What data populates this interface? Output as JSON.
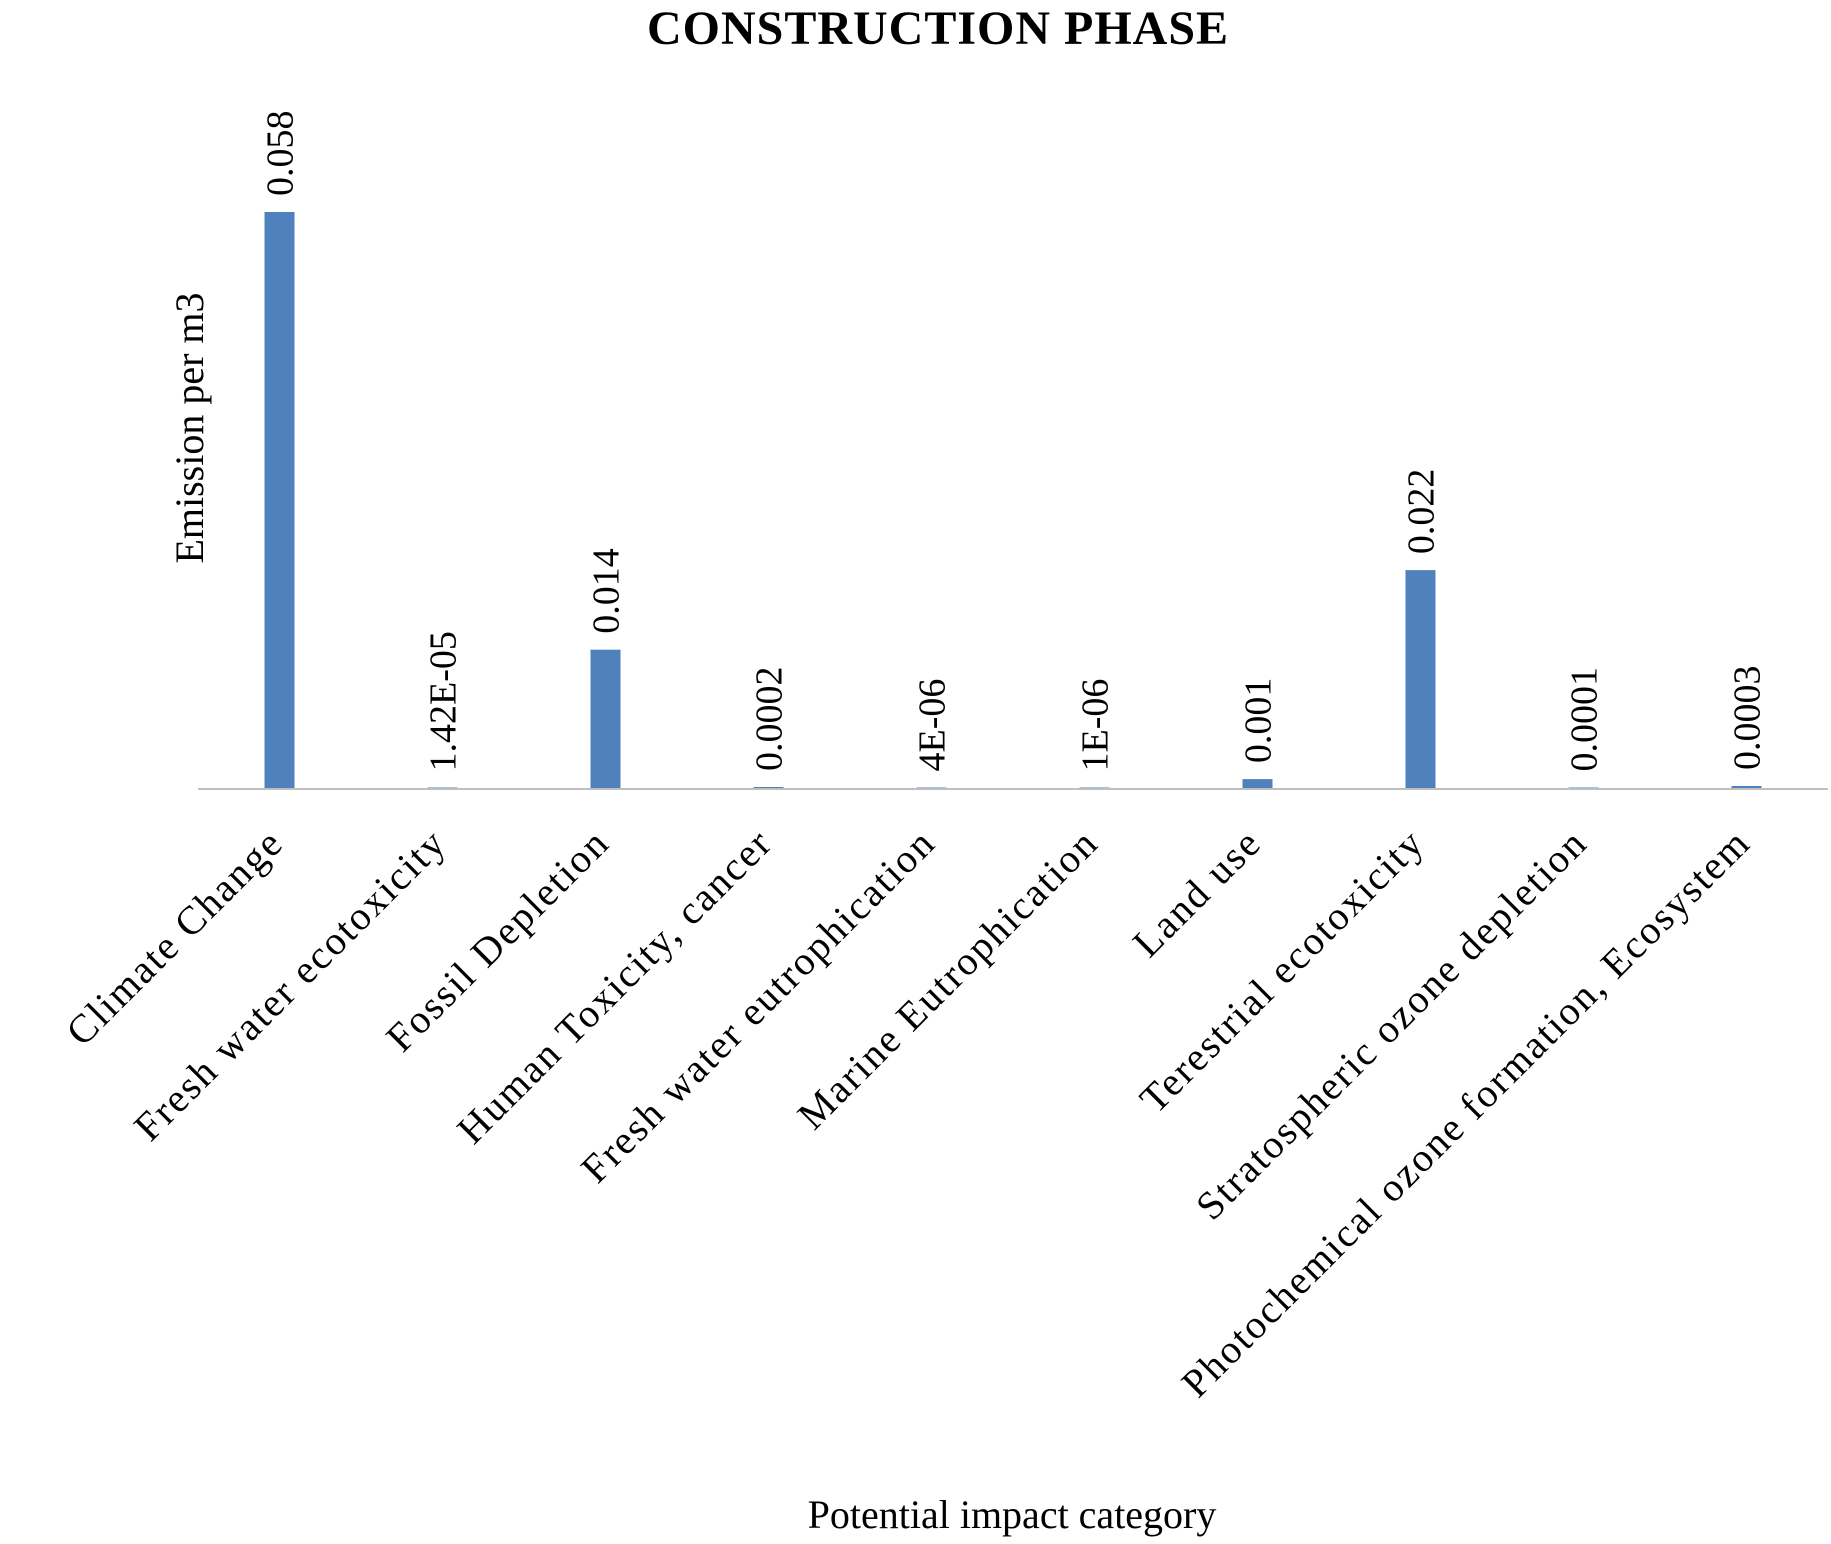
{
  "chart_data": {
    "type": "bar",
    "title": "CONSTRUCTION PHASE",
    "xlabel": "Potential impact category",
    "ylabel": "Emission per m3",
    "ylim": [
      0,
      0.065
    ],
    "grid": false,
    "legend": "none",
    "bar_color": "#4f81bd",
    "axis_color": "#bfbfbf",
    "categories": [
      "Climate Change",
      "Fresh water ecotoxicity",
      "Fossil Depletion",
      "Human Toxicity, cancer",
      "Fresh water eutrophication",
      "Marine Eutrophication",
      "Land use",
      "Terestrial ecotoxicity",
      "Stratospheric ozone depletion",
      "Photochemical ozone formation, Ecosystem"
    ],
    "values": [
      0.058,
      1.42e-05,
      0.014,
      0.0002,
      4e-06,
      1e-06,
      0.001,
      0.022,
      0.0001,
      0.0003
    ],
    "data_labels": [
      "0.058",
      "1.42E-05",
      "0.014",
      "0.0002",
      "4E-06",
      "1E-06",
      "0.001",
      "0.022",
      "0.0001",
      "0.0003"
    ]
  }
}
